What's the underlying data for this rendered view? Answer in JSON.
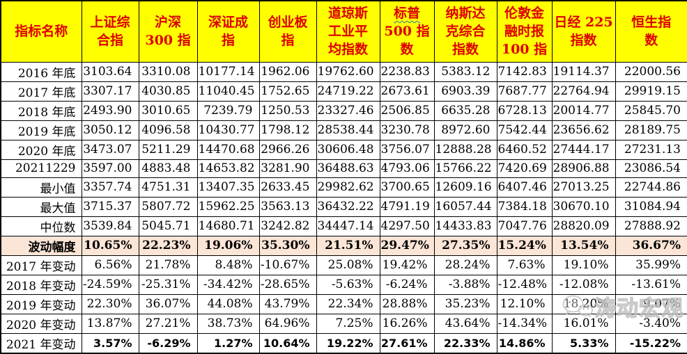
{
  "table": {
    "columns": [
      {
        "label": "指标名称"
      },
      {
        "label": "上证综\n合指"
      },
      {
        "label": "沪深\n300 指"
      },
      {
        "label": "深证成\n指"
      },
      {
        "label": "创业板\n指"
      },
      {
        "label": "道琼斯\n工业平\n均指数"
      },
      {
        "wavy": "标普",
        "label": "\n500 指\n数"
      },
      {
        "label": "纳斯达\n克综合\n指数"
      },
      {
        "label": "伦敦金\n融时报\n100 指"
      },
      {
        "label": "日经 225\n指数"
      },
      {
        "label": "恒生指\n数"
      }
    ],
    "rows": [
      {
        "label": "2016 年底",
        "style": "normal",
        "values": [
          "3103.64",
          "3310.08",
          "10177.14",
          "1962.06",
          "19762.60",
          "2238.83",
          "5383.12",
          "7142.83",
          "19114.37",
          "22000.56"
        ]
      },
      {
        "label": "2017 年底",
        "style": "normal",
        "values": [
          "3307.17",
          "4030.85",
          "11040.45",
          "1752.65",
          "24719.22",
          "2673.61",
          "6903.39",
          "7687.77",
          "22764.94",
          "29919.15"
        ]
      },
      {
        "label": "2018 年底",
        "style": "normal",
        "values": [
          "2493.90",
          "3010.65",
          "7239.79",
          "1250.53",
          "23327.46",
          "2506.85",
          "6635.28",
          "6728.13",
          "20014.77",
          "25845.70"
        ]
      },
      {
        "label": "2019 年底",
        "style": "normal",
        "values": [
          "3050.12",
          "4096.58",
          "10430.77",
          "1798.12",
          "28538.44",
          "3230.78",
          "8972.60",
          "7542.44",
          "23656.62",
          "28189.75"
        ]
      },
      {
        "label": "2020 年底",
        "style": "normal",
        "values": [
          "3473.07",
          "5211.29",
          "14470.68",
          "2966.26",
          "30606.48",
          "3756.07",
          "12888.28",
          "6460.52",
          "27444.17",
          "27231.13"
        ]
      },
      {
        "label": "20211229",
        "style": "normal",
        "values": [
          "3597.00",
          "4883.48",
          "14653.82",
          "3281.90",
          "36488.63",
          "4793.06",
          "15766.22",
          "7420.69",
          "28906.88",
          "23086.54"
        ]
      },
      {
        "label": "最小值",
        "style": "normal",
        "values": [
          "3357.74",
          "4751.31",
          "13407.35",
          "2633.45",
          "29982.62",
          "3700.65",
          "12609.16",
          "6407.46",
          "27013.25",
          "22744.86"
        ]
      },
      {
        "label": "最大值",
        "style": "normal",
        "values": [
          "3715.37",
          "5807.72",
          "15962.25",
          "3563.13",
          "36432.22",
          "4791.19",
          "16057.44",
          "7384.18",
          "30670.10",
          "31084.94"
        ]
      },
      {
        "label": "中位数",
        "style": "normal",
        "values": [
          "3539.84",
          "5045.71",
          "14680.71",
          "3242.82",
          "34447.14",
          "4297.50",
          "14433.83",
          "7047.76",
          "28820.09",
          "27888.92"
        ]
      },
      {
        "label": "波动幅度",
        "style": "highlight",
        "values": [
          "10.65%",
          "22.23%",
          "19.06%",
          "35.30%",
          "21.51%",
          "29.47%",
          "27.35%",
          "15.24%",
          "13.54%",
          "36.67%"
        ]
      },
      {
        "label": "2017 年变动",
        "style": "normal",
        "values": [
          "6.56%",
          "21.78%",
          "8.48%",
          "-10.67%",
          "25.08%",
          "19.42%",
          "28.24%",
          "7.63%",
          "19.10%",
          "35.99%"
        ]
      },
      {
        "label": "2018 年变动",
        "style": "normal",
        "values": [
          "-24.59%",
          "-25.31%",
          "-34.42%",
          "-28.65%",
          "-5.63%",
          "-6.24%",
          "-3.88%",
          "-12.48%",
          "-12.08%",
          "-13.61%"
        ]
      },
      {
        "label": "2019 年变动",
        "style": "normal",
        "values": [
          "22.30%",
          "36.07%",
          "44.08%",
          "43.79%",
          "22.34%",
          "28.88%",
          "35.23%",
          "12.10%",
          "18.20%",
          "9.07%"
        ]
      },
      {
        "label": "2020 年变动",
        "style": "normal",
        "values": [
          "13.87%",
          "27.21%",
          "38.73%",
          "64.96%",
          "7.25%",
          "16.26%",
          "43.64%",
          "-14.34%",
          "16.01%",
          "-3.40%"
        ]
      },
      {
        "label": "2021 年变动",
        "style": "sans-bold",
        "values": [
          "3.57%",
          "-6.29%",
          "1.27%",
          "10.64%",
          "19.22%",
          "27.61%",
          "22.33%",
          "14.86%",
          "5.33%",
          "-15.22%"
        ]
      }
    ]
  },
  "watermark": {
    "text": "涛动宏观"
  },
  "colors": {
    "header_bg": "#FFFF00",
    "header_text": "#DD0000",
    "highlight_bg": "#FBE5D6",
    "border": "#000000",
    "spellcheck_underline": "#2E75B6",
    "watermark": "#BDBDBD"
  }
}
